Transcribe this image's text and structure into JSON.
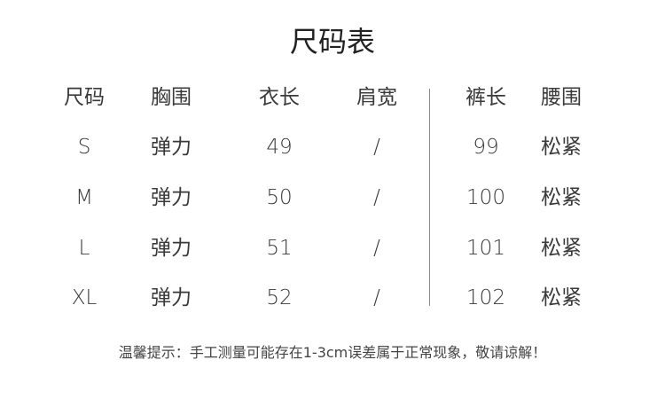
{
  "title": "尺码表",
  "headers": [
    "尺码",
    "胸围",
    "衣长",
    "肩宽",
    "裤长",
    "腰围"
  ],
  "rows": [
    [
      "S",
      "弹力",
      "49",
      "/",
      "99",
      "松紧"
    ],
    [
      "M",
      "弹力",
      "50",
      "/",
      "100",
      "松紧"
    ],
    [
      "L",
      "弹力",
      "51",
      "/",
      "101",
      "松紧"
    ],
    [
      "XL",
      "弹力",
      "52",
      "/",
      "102",
      "松紧"
    ]
  ],
  "note": "温馨提示：手工测量可能存在1-3cm误差属于正常现象，敬请谅解！"
}
